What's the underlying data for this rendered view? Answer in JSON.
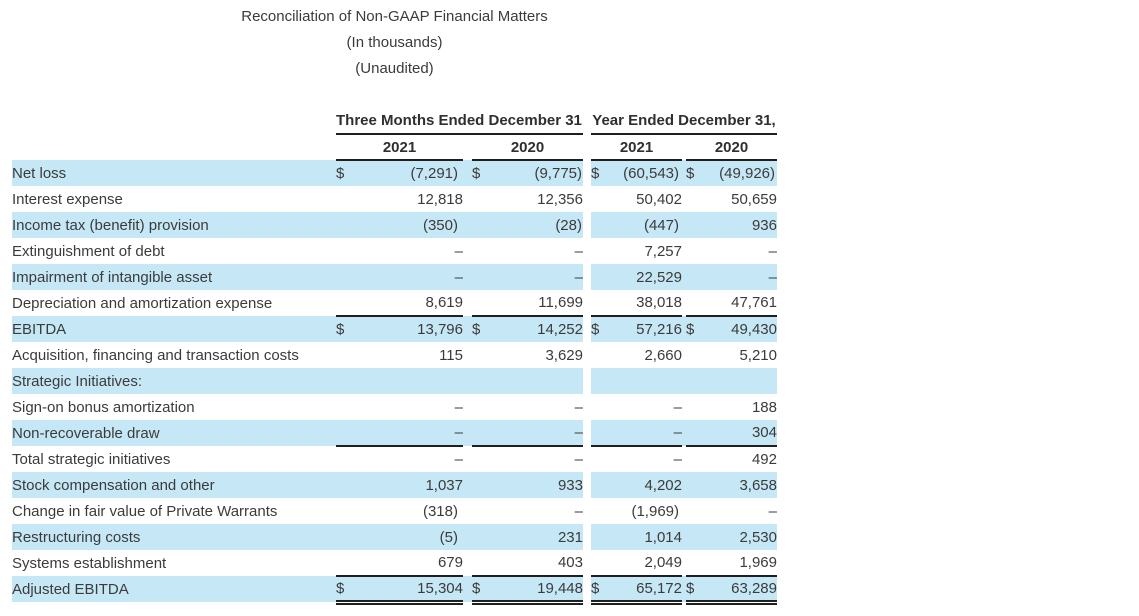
{
  "title": {
    "line1": "Reconciliation of Non-GAAP Financial Matters",
    "line2": "(In thousands)",
    "line3": "(Unaudited)"
  },
  "table": {
    "dollar_symbol": "$",
    "period_headers": [
      {
        "label": "Three Months Ended December 31,"
      },
      {
        "label": "Year Ended December 31,"
      }
    ],
    "year_headers": [
      "2021",
      "2020",
      "2021",
      "2020"
    ],
    "rows": [
      {
        "label": "Net loss",
        "indent": 0,
        "shaded": true,
        "dollar": true,
        "values": [
          "(7,291)",
          "(9,775)",
          "(60,543)",
          "(49,926)"
        ]
      },
      {
        "label": "Interest expense",
        "indent": 1,
        "shaded": false,
        "values": [
          "12,818",
          "12,356",
          "50,402",
          "50,659"
        ]
      },
      {
        "label": "Income tax (benefit) provision",
        "indent": 1,
        "shaded": true,
        "values": [
          "(350)",
          "(28)",
          "(447)",
          "936"
        ]
      },
      {
        "label": "Extinguishment of debt",
        "indent": 1,
        "shaded": false,
        "values": [
          "–",
          "–",
          "7,257",
          "–"
        ]
      },
      {
        "label": "Impairment of intangible asset",
        "indent": 1,
        "shaded": true,
        "values": [
          "–",
          "–",
          "22,529",
          "–"
        ]
      },
      {
        "label": "Depreciation and amortization expense",
        "indent": 1,
        "shaded": false,
        "values": [
          "8,619",
          "11,699",
          "38,018",
          "47,761"
        ]
      },
      {
        "label": "EBITDA",
        "indent": 0,
        "shaded": true,
        "dollar": true,
        "border_top": true,
        "values": [
          "13,796",
          "14,252",
          "57,216",
          "49,430"
        ]
      },
      {
        "label": "Acquisition, financing and transaction costs",
        "indent": 1,
        "shaded": false,
        "values": [
          "115",
          "3,629",
          "2,660",
          "5,210"
        ]
      },
      {
        "label": "Strategic Initiatives:",
        "indent": 1,
        "shaded": true,
        "values": [
          "",
          "",
          "",
          ""
        ]
      },
      {
        "label": "Sign-on bonus amortization",
        "indent": 2,
        "shaded": false,
        "values": [
          "–",
          "–",
          "–",
          "188"
        ]
      },
      {
        "label": "Non-recoverable draw",
        "indent": 2,
        "shaded": true,
        "values": [
          "–",
          "–",
          "–",
          "304"
        ]
      },
      {
        "label": "Total strategic initiatives",
        "indent": 1,
        "shaded": false,
        "border_top": true,
        "values": [
          "–",
          "–",
          "–",
          "492"
        ]
      },
      {
        "label": "Stock compensation and other",
        "indent": 1,
        "shaded": true,
        "values": [
          "1,037",
          "933",
          "4,202",
          "3,658"
        ]
      },
      {
        "label": "Change in fair value of Private Warrants",
        "indent": 1,
        "shaded": false,
        "values": [
          "(318)",
          "–",
          "(1,969)",
          "–"
        ]
      },
      {
        "label": "Restructuring costs",
        "indent": 1,
        "shaded": true,
        "values": [
          "(5)",
          "231",
          "1,014",
          "2,530"
        ]
      },
      {
        "label": "Systems establishment",
        "indent": 1,
        "shaded": false,
        "values": [
          "679",
          "403",
          "2,049",
          "1,969"
        ]
      },
      {
        "label": "Adjusted EBITDA",
        "indent": 0,
        "shaded": true,
        "dollar": true,
        "border_top": true,
        "border_bottom_double": true,
        "values": [
          "15,304",
          "19,448",
          "65,172",
          "63,289"
        ]
      }
    ],
    "colors": {
      "row_highlight": "#c6e8f6",
      "text": "#3b3b3b",
      "border": "#1f1f1f"
    }
  }
}
